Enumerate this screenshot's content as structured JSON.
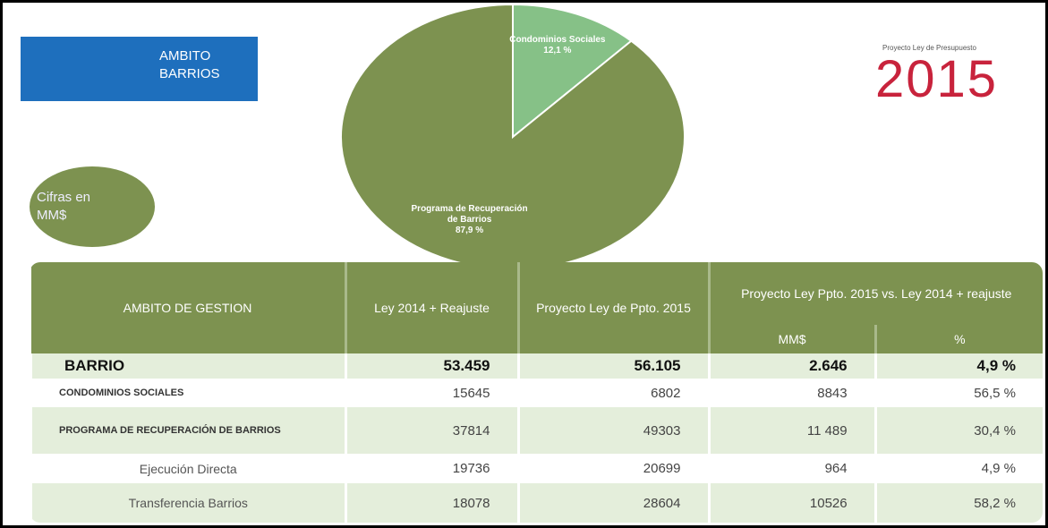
{
  "header": {
    "section": "AMBITO BARRIOS",
    "caption": "Proyecto Ley de Presupuesto",
    "year": "2015",
    "units": "Cifras en MM$"
  },
  "chart_data": {
    "type": "pie",
    "categories": [
      "Condominios Sociales",
      "Programa de Recuperación de Barrios"
    ],
    "values": [
      12.1,
      87.9
    ],
    "value_labels": [
      "12,1 %",
      "87,9 %"
    ],
    "colors": [
      "#86c187",
      "#7d9250"
    ]
  },
  "table": {
    "headers": [
      "AMBITO DE GESTION",
      "Ley 2014 + Reajuste",
      "Proyecto Ley de Ppto. 2015",
      "Proyecto Ley Ppto. 2015 vs. Ley 2014 + reajuste"
    ],
    "subheaders": [
      "MM$",
      "%"
    ],
    "rows": [
      [
        "BARRIO",
        "53.459",
        "56.105",
        "2.646",
        "4,9 %"
      ],
      [
        "CONDOMINIOS SOCIALES",
        "15645",
        "6802",
        "8843",
        "56,5 %"
      ],
      [
        "PROGRAMA DE RECUPERACIÓN DE BARRIOS",
        "37814",
        "49303",
        "11 489",
        "30,4 %"
      ],
      [
        "Ejecución Directa",
        "19736",
        "20699",
        "964",
        "4,9 %"
      ],
      [
        "Transferencia Barrios",
        "18078",
        "28604",
        "10526",
        "58,2 %"
      ]
    ]
  }
}
